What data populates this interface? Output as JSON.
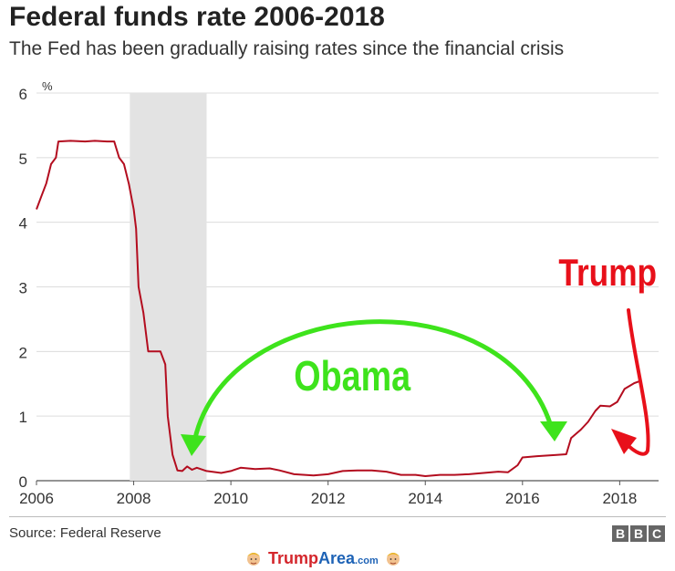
{
  "title": "Federal funds rate 2006-2018",
  "subtitle": "The Fed has been gradually raising rates since the financial crisis",
  "source": "Source: Federal Reserve",
  "brand_letters": [
    "B",
    "B",
    "C"
  ],
  "watermark": {
    "name_a": "Trump",
    "name_b": "Area",
    "suffix": ".com",
    "icon": "trump-face-icon"
  },
  "annotations": {
    "left_label": "Obama",
    "right_label": "Trump"
  },
  "colors": {
    "line": "#b30d1f",
    "recession": "#e3e3e3",
    "obama": "#3ee31c",
    "trump": "#e8101a",
    "grid": "#dcdcdc"
  },
  "chart_data": {
    "type": "line",
    "unit_label": "%",
    "x_ticks": [
      "2006",
      "2008",
      "2010",
      "2012",
      "2014",
      "2016",
      "2018"
    ],
    "y_ticks": [
      "0",
      "1",
      "2",
      "3",
      "4",
      "5",
      "6"
    ],
    "xlim": [
      2006.0,
      2018.8
    ],
    "ylim": [
      0,
      6
    ],
    "grid": true,
    "recession": [
      2007.92,
      2009.5
    ],
    "series": [
      {
        "points": [
          [
            2006.0,
            4.2
          ],
          [
            2006.1,
            4.4
          ],
          [
            2006.2,
            4.6
          ],
          [
            2006.3,
            4.9
          ],
          [
            2006.4,
            5.0
          ],
          [
            2006.45,
            5.25
          ],
          [
            2006.7,
            5.26
          ],
          [
            2007.0,
            5.25
          ],
          [
            2007.2,
            5.26
          ],
          [
            2007.45,
            5.25
          ],
          [
            2007.6,
            5.25
          ],
          [
            2007.7,
            5.0
          ],
          [
            2007.8,
            4.9
          ],
          [
            2007.9,
            4.6
          ],
          [
            2008.0,
            4.2
          ],
          [
            2008.05,
            3.9
          ],
          [
            2008.1,
            3.0
          ],
          [
            2008.2,
            2.6
          ],
          [
            2008.3,
            2.0
          ],
          [
            2008.4,
            2.0
          ],
          [
            2008.55,
            2.0
          ],
          [
            2008.65,
            1.8
          ],
          [
            2008.7,
            1.0
          ],
          [
            2008.8,
            0.4
          ],
          [
            2008.9,
            0.16
          ],
          [
            2009.0,
            0.15
          ],
          [
            2009.1,
            0.22
          ],
          [
            2009.2,
            0.17
          ],
          [
            2009.3,
            0.2
          ],
          [
            2009.5,
            0.15
          ],
          [
            2009.8,
            0.12
          ],
          [
            2010.0,
            0.15
          ],
          [
            2010.2,
            0.2
          ],
          [
            2010.5,
            0.18
          ],
          [
            2010.8,
            0.19
          ],
          [
            2011.0,
            0.16
          ],
          [
            2011.3,
            0.1
          ],
          [
            2011.7,
            0.08
          ],
          [
            2012.0,
            0.1
          ],
          [
            2012.3,
            0.15
          ],
          [
            2012.6,
            0.16
          ],
          [
            2012.9,
            0.16
          ],
          [
            2013.2,
            0.14
          ],
          [
            2013.5,
            0.09
          ],
          [
            2013.8,
            0.09
          ],
          [
            2014.0,
            0.07
          ],
          [
            2014.3,
            0.09
          ],
          [
            2014.6,
            0.09
          ],
          [
            2014.9,
            0.1
          ],
          [
            2015.2,
            0.12
          ],
          [
            2015.5,
            0.14
          ],
          [
            2015.7,
            0.13
          ],
          [
            2015.9,
            0.24
          ],
          [
            2016.0,
            0.36
          ],
          [
            2016.3,
            0.38
          ],
          [
            2016.7,
            0.4
          ],
          [
            2016.9,
            0.41
          ],
          [
            2017.0,
            0.66
          ],
          [
            2017.2,
            0.79
          ],
          [
            2017.35,
            0.91
          ],
          [
            2017.5,
            1.08
          ],
          [
            2017.6,
            1.16
          ],
          [
            2017.8,
            1.15
          ],
          [
            2017.95,
            1.22
          ],
          [
            2018.1,
            1.42
          ],
          [
            2018.3,
            1.51
          ],
          [
            2018.45,
            1.55
          ]
        ]
      }
    ]
  }
}
